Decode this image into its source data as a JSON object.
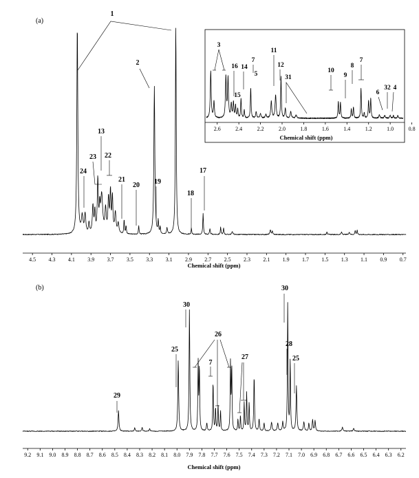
{
  "chart_data": [
    {
      "type": "line",
      "panel_label": "(a)",
      "xlabel": "Chemical shift (ppm)",
      "reversed_x": true,
      "xlim": [
        4.6,
        0.67
      ],
      "x_ticks": [
        "4.5",
        "4.3",
        "4.1",
        "3.9",
        "3.7",
        "3.5",
        "3.3",
        "3.1",
        "2.9",
        "2.7",
        "2.5",
        "2.3",
        "2.1",
        "1.9",
        "1.7",
        "1.5",
        "1.3",
        "1.1",
        "0.9",
        "0.7"
      ],
      "peaks": [
        {
          "x": 4.04,
          "y": 1.0,
          "w": 0.006
        },
        {
          "x": 3.03,
          "y": 1.0,
          "w": 0.005
        },
        {
          "x": 3.25,
          "y": 0.7,
          "w": 0.006
        },
        {
          "x": 3.99,
          "y": 0.08,
          "w": 0.01
        },
        {
          "x": 3.96,
          "y": 0.09,
          "w": 0.008
        },
        {
          "x": 3.92,
          "y": 0.05,
          "w": 0.006
        },
        {
          "x": 3.88,
          "y": 0.13,
          "w": 0.007
        },
        {
          "x": 3.86,
          "y": 0.1,
          "w": 0.006
        },
        {
          "x": 3.83,
          "y": 0.25,
          "w": 0.006
        },
        {
          "x": 3.81,
          "y": 0.11,
          "w": 0.006
        },
        {
          "x": 3.79,
          "y": 0.18,
          "w": 0.012
        },
        {
          "x": 3.75,
          "y": 0.11,
          "w": 0.008
        },
        {
          "x": 3.72,
          "y": 0.16,
          "w": 0.007
        },
        {
          "x": 3.7,
          "y": 0.19,
          "w": 0.006
        },
        {
          "x": 3.68,
          "y": 0.17,
          "w": 0.006
        },
        {
          "x": 3.65,
          "y": 0.1,
          "w": 0.008
        },
        {
          "x": 3.62,
          "y": 0.05,
          "w": 0.008
        },
        {
          "x": 3.56,
          "y": 0.07,
          "w": 0.004
        },
        {
          "x": 3.54,
          "y": 0.04,
          "w": 0.004
        },
        {
          "x": 3.41,
          "y": 0.04,
          "w": 0.004
        },
        {
          "x": 3.21,
          "y": 0.06,
          "w": 0.004
        },
        {
          "x": 3.19,
          "y": 0.03,
          "w": 0.004
        },
        {
          "x": 3.12,
          "y": 0.03,
          "w": 0.005
        },
        {
          "x": 2.87,
          "y": 0.03,
          "w": 0.004
        },
        {
          "x": 2.75,
          "y": 0.1,
          "w": 0.004
        },
        {
          "x": 2.68,
          "y": 0.025,
          "w": 0.005
        },
        {
          "x": 2.57,
          "y": 0.035,
          "w": 0.004
        },
        {
          "x": 2.54,
          "y": 0.03,
          "w": 0.004
        },
        {
          "x": 2.45,
          "y": 0.015,
          "w": 0.006
        },
        {
          "x": 2.06,
          "y": 0.02,
          "w": 0.006
        },
        {
          "x": 2.04,
          "y": 0.015,
          "w": 0.005
        },
        {
          "x": 1.48,
          "y": 0.015,
          "w": 0.004
        },
        {
          "x": 1.33,
          "y": 0.012,
          "w": 0.005
        },
        {
          "x": 1.25,
          "y": 0.012,
          "w": 0.005
        },
        {
          "x": 1.19,
          "y": 0.02,
          "w": 0.004
        },
        {
          "x": 1.17,
          "y": 0.02,
          "w": 0.004
        }
      ],
      "labels": [
        {
          "text": "1",
          "x": [
            4.04,
            3.03
          ]
        },
        {
          "text": "2",
          "x": 3.25
        },
        {
          "text": "13",
          "x": 3.81
        },
        {
          "text": "23",
          "x": 3.86
        },
        {
          "text": "22",
          "x": 3.7
        },
        {
          "text": "24",
          "x": 3.96
        },
        {
          "text": "21",
          "x": 3.56
        },
        {
          "text": "20",
          "x": 3.41
        },
        {
          "text": "19",
          "x": 3.21
        },
        {
          "text": "18",
          "x": 2.87
        },
        {
          "text": "17",
          "x": 2.75
        }
      ],
      "inset": {
        "xlabel": "Chemical shift (ppm)",
        "reversed_x": true,
        "xlim": [
          2.7,
          0.88
        ],
        "x_ticks": [
          "2.6",
          "2.4",
          "2.2",
          "2.0",
          "1.8",
          "1.6",
          "1.4",
          "1.2",
          "1.0",
          "0.8"
        ],
        "peaks": [
          {
            "x": 2.66,
            "y": 0.85,
            "w": 0.005
          },
          {
            "x": 2.63,
            "y": 0.3,
            "w": 0.005
          },
          {
            "x": 2.52,
            "y": 0.75,
            "w": 0.005
          },
          {
            "x": 2.5,
            "y": 0.72,
            "w": 0.005
          },
          {
            "x": 2.47,
            "y": 0.25,
            "w": 0.005
          },
          {
            "x": 2.45,
            "y": 0.28,
            "w": 0.005
          },
          {
            "x": 2.43,
            "y": 0.22,
            "w": 0.004
          },
          {
            "x": 2.41,
            "y": 0.16,
            "w": 0.004
          },
          {
            "x": 2.38,
            "y": 0.35,
            "w": 0.004
          },
          {
            "x": 2.35,
            "y": 0.15,
            "w": 0.004
          },
          {
            "x": 2.29,
            "y": 0.55,
            "w": 0.004
          },
          {
            "x": 2.24,
            "y": 0.12,
            "w": 0.005
          },
          {
            "x": 2.2,
            "y": 0.08,
            "w": 0.006
          },
          {
            "x": 2.15,
            "y": 0.07,
            "w": 0.006
          },
          {
            "x": 2.1,
            "y": 0.3,
            "w": 0.006
          },
          {
            "x": 2.06,
            "y": 0.42,
            "w": 0.006
          },
          {
            "x": 2.01,
            "y": 0.75,
            "w": 0.004
          },
          {
            "x": 1.97,
            "y": 0.18,
            "w": 0.005
          },
          {
            "x": 1.92,
            "y": 0.12,
            "w": 0.006
          },
          {
            "x": 1.87,
            "y": 0.06,
            "w": 0.007
          },
          {
            "x": 1.48,
            "y": 0.3,
            "w": 0.004
          },
          {
            "x": 1.46,
            "y": 0.28,
            "w": 0.004
          },
          {
            "x": 1.36,
            "y": 0.16,
            "w": 0.004
          },
          {
            "x": 1.34,
            "y": 0.2,
            "w": 0.004
          },
          {
            "x": 1.27,
            "y": 0.55,
            "w": 0.004
          },
          {
            "x": 1.24,
            "y": 0.1,
            "w": 0.004
          },
          {
            "x": 1.2,
            "y": 0.32,
            "w": 0.004
          },
          {
            "x": 1.18,
            "y": 0.35,
            "w": 0.004
          },
          {
            "x": 1.1,
            "y": 0.06,
            "w": 0.006
          },
          {
            "x": 1.05,
            "y": 0.05,
            "w": 0.006
          },
          {
            "x": 1.0,
            "y": 0.05,
            "w": 0.006
          },
          {
            "x": 0.97,
            "y": 0.05,
            "w": 0.004
          },
          {
            "x": 0.93,
            "y": 0.05,
            "w": 0.005
          }
        ],
        "labels": [
          {
            "text": "3",
            "x": [
              2.66,
              2.51
            ]
          },
          {
            "text": "16",
            "x": 2.46
          },
          {
            "text": "15",
            "x": 2.42
          },
          {
            "text": "14",
            "x": 2.38
          },
          {
            "text": "7",
            "x": 2.29
          },
          {
            "text": "5",
            "x": 2.26
          },
          {
            "text": "11",
            "x": 2.06
          },
          {
            "text": "12",
            "x": 2.01
          },
          {
            "text": "31",
            "x": [
              1.97,
              1.78
            ]
          },
          {
            "text": "10",
            "x": 1.47
          },
          {
            "text": "9",
            "x": 1.35
          },
          {
            "text": "8",
            "x": 1.27
          },
          {
            "text": "7",
            "x": 1.19
          },
          {
            "text": "6",
            "x": 1.04
          },
          {
            "text": "32",
            "x": 0.97
          },
          {
            "text": "4",
            "x": 0.93
          }
        ]
      }
    },
    {
      "type": "line",
      "panel_label": "(b)",
      "xlabel": "Chemical shift (ppm)",
      "reversed_x": true,
      "xlim": [
        9.24,
        6.16
      ],
      "x_ticks": [
        "9.2",
        "9.1",
        "9.0",
        "8.9",
        "8.8",
        "8.7",
        "8.6",
        "8.5",
        "8.4",
        "8.3",
        "8.2",
        "8.1",
        "8.0",
        "7.9",
        "7.8",
        "7.7",
        "7.6",
        "7.5",
        "7.4",
        "7.3",
        "7.2",
        "7.1",
        "7.0",
        "6.9",
        "6.8",
        "6.7",
        "6.6",
        "6.5",
        "6.4",
        "6.3",
        "6.2"
      ],
      "peaks": [
        {
          "x": 8.47,
          "y": 0.16,
          "w": 0.004
        },
        {
          "x": 8.34,
          "y": 0.025,
          "w": 0.004
        },
        {
          "x": 8.28,
          "y": 0.03,
          "w": 0.004
        },
        {
          "x": 8.22,
          "y": 0.02,
          "w": 0.004
        },
        {
          "x": 7.99,
          "y": 0.55,
          "w": 0.004
        },
        {
          "x": 7.9,
          "y": 0.94,
          "w": 0.0035
        },
        {
          "x": 7.83,
          "y": 0.52,
          "w": 0.003
        },
        {
          "x": 7.82,
          "y": 0.5,
          "w": 0.003
        },
        {
          "x": 7.76,
          "y": 0.06,
          "w": 0.004
        },
        {
          "x": 7.71,
          "y": 0.39,
          "w": 0.003
        },
        {
          "x": 7.69,
          "y": 0.18,
          "w": 0.003
        },
        {
          "x": 7.67,
          "y": 0.2,
          "w": 0.003
        },
        {
          "x": 7.65,
          "y": 0.16,
          "w": 0.003
        },
        {
          "x": 7.57,
          "y": 0.52,
          "w": 0.003
        },
        {
          "x": 7.56,
          "y": 0.5,
          "w": 0.003
        },
        {
          "x": 7.51,
          "y": 0.09,
          "w": 0.003
        },
        {
          "x": 7.49,
          "y": 0.12,
          "w": 0.003
        },
        {
          "x": 7.46,
          "y": 0.22,
          "w": 0.003
        },
        {
          "x": 7.44,
          "y": 0.3,
          "w": 0.003
        },
        {
          "x": 7.42,
          "y": 0.22,
          "w": 0.003
        },
        {
          "x": 7.38,
          "y": 0.43,
          "w": 0.0035
        },
        {
          "x": 7.34,
          "y": 0.09,
          "w": 0.004
        },
        {
          "x": 7.3,
          "y": 0.06,
          "w": 0.004
        },
        {
          "x": 7.24,
          "y": 0.07,
          "w": 0.005
        },
        {
          "x": 7.19,
          "y": 0.06,
          "w": 0.005
        },
        {
          "x": 7.15,
          "y": 0.07,
          "w": 0.004
        },
        {
          "x": 7.11,
          "y": 1.0,
          "w": 0.003
        },
        {
          "x": 7.09,
          "y": 0.55,
          "w": 0.003
        },
        {
          "x": 7.04,
          "y": 0.35,
          "w": 0.004
        },
        {
          "x": 6.98,
          "y": 0.07,
          "w": 0.005
        },
        {
          "x": 6.94,
          "y": 0.06,
          "w": 0.004
        },
        {
          "x": 6.91,
          "y": 0.09,
          "w": 0.004
        },
        {
          "x": 6.89,
          "y": 0.08,
          "w": 0.004
        },
        {
          "x": 6.67,
          "y": 0.03,
          "w": 0.005
        },
        {
          "x": 6.58,
          "y": 0.02,
          "w": 0.005
        }
      ],
      "labels": [
        {
          "text": "29",
          "x": 8.47
        },
        {
          "text": "25",
          "x": 7.99
        },
        {
          "text": "30",
          "x": 7.9
        },
        {
          "text": "26",
          "x": [
            7.82,
            7.66,
            7.56
          ]
        },
        {
          "text": "7",
          "x": 7.71
        },
        {
          "text": "27",
          "x": [
            7.49,
            7.44
          ]
        },
        {
          "text": "30",
          "x": 7.11
        },
        {
          "text": "28",
          "x": 7.09
        },
        {
          "text": "25",
          "x": 7.04
        }
      ]
    }
  ]
}
